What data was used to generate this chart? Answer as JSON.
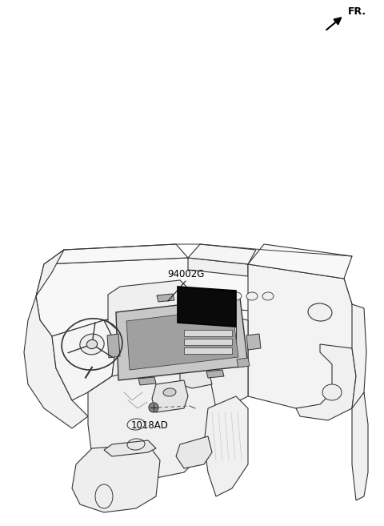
{
  "bg_color": "#ffffff",
  "line_color": "#333333",
  "fr_label": "FR.",
  "part_label_1": "94002G",
  "part_label_2": "1018AD",
  "figsize": [
    4.8,
    6.57
  ],
  "dpi": 100
}
